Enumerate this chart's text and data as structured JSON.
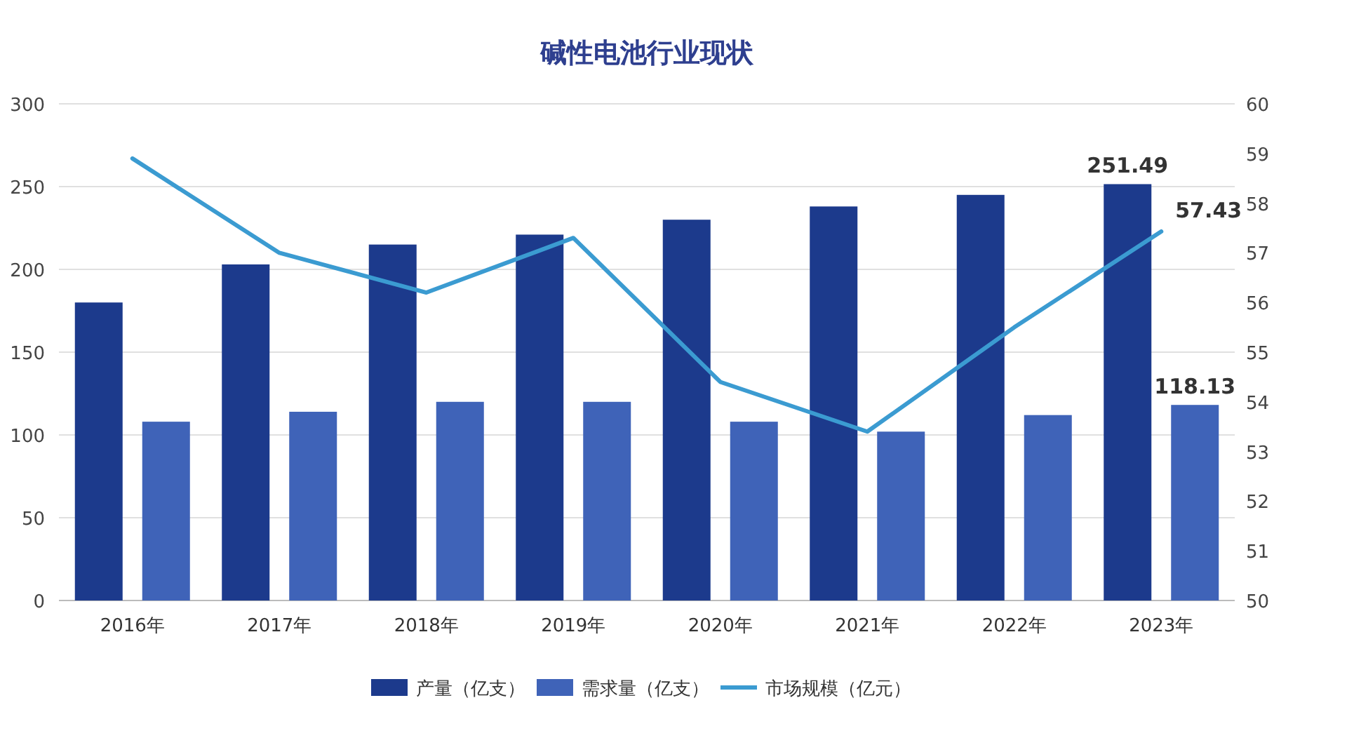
{
  "chart_data": {
    "type": "bar",
    "title": "碱性电池行业现状",
    "categories": [
      "2016年",
      "2017年",
      "2018年",
      "2019年",
      "2020年",
      "2021年",
      "2022年",
      "2023年"
    ],
    "series": [
      {
        "name": "产量（亿支）",
        "color": "#1c3a8c",
        "values": [
          180,
          203,
          215,
          221,
          230,
          238,
          245,
          251.49
        ],
        "value_labels": [
          null,
          null,
          null,
          null,
          null,
          null,
          null,
          "251.49"
        ]
      },
      {
        "name": "需求量（亿支）",
        "color": "#3f63b8",
        "values": [
          108,
          114,
          120,
          120,
          108,
          102,
          112,
          118.13
        ],
        "value_labels": [
          null,
          null,
          null,
          null,
          null,
          null,
          null,
          "118.13"
        ]
      },
      {
        "name": "市场规模（亿元）",
        "type": "line",
        "axis": "y2",
        "color": "#3b9bd1",
        "values": [
          58.9,
          57.0,
          56.2,
          57.3,
          54.4,
          53.4,
          55.5,
          57.43
        ],
        "value_labels": [
          null,
          null,
          null,
          null,
          null,
          null,
          null,
          "57.43"
        ]
      }
    ],
    "ylim": [
      0,
      300
    ],
    "yticks": [
      0,
      50,
      100,
      150,
      200,
      250,
      300
    ],
    "y2lim": [
      50,
      60
    ],
    "y2ticks": [
      50,
      51,
      52,
      53,
      54,
      55,
      56,
      57,
      58,
      59,
      60
    ],
    "grid": "y",
    "legend": "bottom"
  }
}
